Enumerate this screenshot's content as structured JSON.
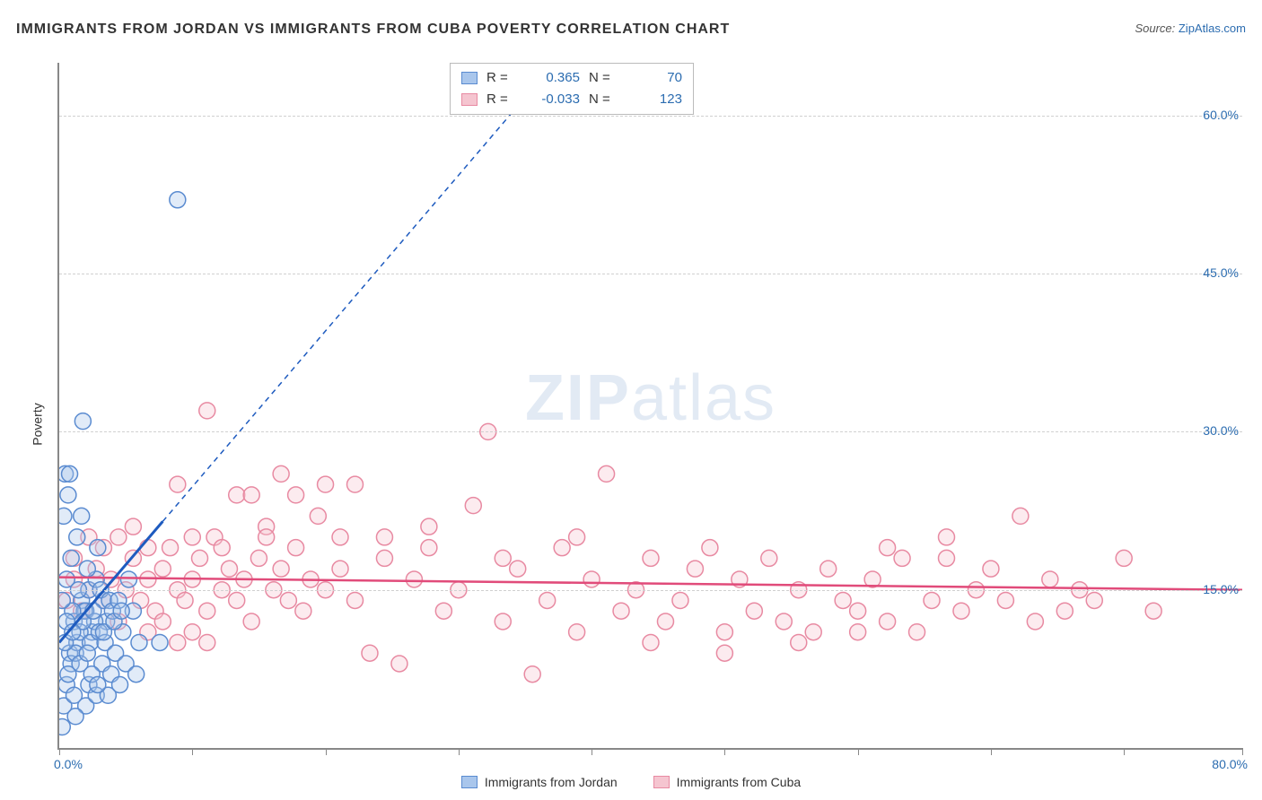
{
  "title": "IMMIGRANTS FROM JORDAN VS IMMIGRANTS FROM CUBA POVERTY CORRELATION CHART",
  "source_label": "Source: ",
  "source_value": "ZipAtlas.com",
  "ylabel": "Poverty",
  "watermark_a": "ZIP",
  "watermark_b": "atlas",
  "chart": {
    "type": "scatter",
    "background_color": "#ffffff",
    "grid_color": "#d0d0d0",
    "axis_color": "#888888",
    "xlim": [
      0,
      80
    ],
    "ylim": [
      0,
      65
    ],
    "xtick_labels": {
      "left": "0.0%",
      "right": "80.0%"
    },
    "xtick_marks": [
      0,
      9,
      18,
      27,
      36,
      45,
      54,
      63,
      72,
      80
    ],
    "yticks": [
      {
        "v": 15,
        "label": "15.0%"
      },
      {
        "v": 30,
        "label": "30.0%"
      },
      {
        "v": 45,
        "label": "45.0%"
      },
      {
        "v": 60,
        "label": "60.0%"
      }
    ],
    "marker_radius": 9,
    "marker_stroke_width": 1.5,
    "marker_fill_opacity": 0.35,
    "series": [
      {
        "name": "Immigrants from Jordan",
        "color_fill": "#a9c6ec",
        "color_stroke": "#5a8bd0",
        "R_label": "R =",
        "R": "0.365",
        "N_label": "N =",
        "N": "70",
        "trend": {
          "solid_to_x": 7,
          "slope_start": [
            0,
            10
          ],
          "slope_end": [
            33.5,
            65
          ],
          "color": "#1e5bbf",
          "dash": "6,5"
        },
        "points": [
          [
            0.2,
            2
          ],
          [
            0.5,
            6
          ],
          [
            0.7,
            9
          ],
          [
            1,
            12
          ],
          [
            1.2,
            10
          ],
          [
            1.5,
            14
          ],
          [
            0.8,
            8
          ],
          [
            1.8,
            13
          ],
          [
            2,
            15
          ],
          [
            2.2,
            11
          ],
          [
            2.5,
            16
          ],
          [
            3,
            14
          ],
          [
            3.2,
            12
          ],
          [
            0.3,
            4
          ],
          [
            0.6,
            7
          ],
          [
            1.1,
            9
          ],
          [
            1.4,
            11
          ],
          [
            1.7,
            13
          ],
          [
            2.1,
            10
          ],
          [
            2.4,
            12
          ],
          [
            2.8,
            15
          ],
          [
            3.4,
            14
          ],
          [
            0.4,
            10
          ],
          [
            0.9,
            13
          ],
          [
            1.3,
            15
          ],
          [
            1.6,
            12
          ],
          [
            2.3,
            13
          ],
          [
            2.7,
            11
          ],
          [
            3.1,
            10
          ],
          [
            3.6,
            13
          ],
          [
            4,
            14
          ],
          [
            4.3,
            11
          ],
          [
            4.7,
            16
          ],
          [
            5,
            13
          ],
          [
            5.4,
            10
          ],
          [
            0.5,
            16
          ],
          [
            0.8,
            18
          ],
          [
            1.2,
            20
          ],
          [
            1.9,
            17
          ],
          [
            2.6,
            19
          ],
          [
            0.3,
            22
          ],
          [
            0.6,
            24
          ],
          [
            1.5,
            22
          ],
          [
            0.4,
            26
          ],
          [
            0.7,
            26
          ],
          [
            3.8,
            9
          ],
          [
            4.5,
            8
          ],
          [
            5.2,
            7
          ],
          [
            1.0,
            5
          ],
          [
            2.0,
            6
          ],
          [
            2.9,
            8
          ],
          [
            3.5,
            7
          ],
          [
            1.8,
            4
          ],
          [
            2.5,
            5
          ],
          [
            1.6,
            31
          ],
          [
            8,
            52
          ],
          [
            6.8,
            10
          ],
          [
            1.1,
            3
          ],
          [
            3.3,
            5
          ],
          [
            4.1,
            6
          ],
          [
            0.2,
            14
          ],
          [
            0.5,
            12
          ],
          [
            0.9,
            11
          ],
          [
            1.4,
            8
          ],
          [
            1.9,
            9
          ],
          [
            2.2,
            7
          ],
          [
            2.6,
            6
          ],
          [
            3.0,
            11
          ],
          [
            3.7,
            12
          ],
          [
            4.2,
            13
          ]
        ]
      },
      {
        "name": "Immigrants from Cuba",
        "color_fill": "#f5c5d0",
        "color_stroke": "#e88aa2",
        "R_label": "R =",
        "R": "-0.033",
        "N_label": "N =",
        "N": "123",
        "trend": {
          "flat_y_start": 16.2,
          "flat_y_end": 15.0,
          "color": "#e14b7a"
        },
        "points": [
          [
            0.5,
            14
          ],
          [
            1,
            16
          ],
          [
            1.5,
            13
          ],
          [
            2,
            15
          ],
          [
            2.5,
            17
          ],
          [
            3,
            14
          ],
          [
            3.5,
            16
          ],
          [
            4,
            12
          ],
          [
            4.5,
            15
          ],
          [
            5,
            18
          ],
          [
            5.5,
            14
          ],
          [
            6,
            16
          ],
          [
            6.5,
            13
          ],
          [
            7,
            17
          ],
          [
            7.5,
            19
          ],
          [
            8,
            15
          ],
          [
            8.5,
            14
          ],
          [
            9,
            16
          ],
          [
            9.5,
            18
          ],
          [
            10,
            13
          ],
          [
            10.5,
            20
          ],
          [
            11,
            15
          ],
          [
            11.5,
            17
          ],
          [
            12,
            14
          ],
          [
            12.5,
            16
          ],
          [
            13,
            12
          ],
          [
            13.5,
            18
          ],
          [
            14,
            21
          ],
          [
            14.5,
            15
          ],
          [
            15,
            17
          ],
          [
            15.5,
            14
          ],
          [
            16,
            19
          ],
          [
            16.5,
            13
          ],
          [
            17,
            16
          ],
          [
            17.5,
            22
          ],
          [
            18,
            15
          ],
          [
            19,
            17
          ],
          [
            20,
            14
          ],
          [
            21,
            9
          ],
          [
            22,
            18
          ],
          [
            23,
            8
          ],
          [
            24,
            16
          ],
          [
            25,
            21
          ],
          [
            26,
            13
          ],
          [
            27,
            15
          ],
          [
            28,
            23
          ],
          [
            29,
            30
          ],
          [
            30,
            12
          ],
          [
            31,
            17
          ],
          [
            32,
            7
          ],
          [
            33,
            14
          ],
          [
            34,
            19
          ],
          [
            35,
            11
          ],
          [
            36,
            16
          ],
          [
            37,
            26
          ],
          [
            38,
            13
          ],
          [
            39,
            15
          ],
          [
            40,
            18
          ],
          [
            41,
            12
          ],
          [
            42,
            14
          ],
          [
            43,
            17
          ],
          [
            44,
            19
          ],
          [
            45,
            11
          ],
          [
            46,
            16
          ],
          [
            47,
            13
          ],
          [
            48,
            18
          ],
          [
            49,
            12
          ],
          [
            50,
            15
          ],
          [
            51,
            11
          ],
          [
            52,
            17
          ],
          [
            53,
            14
          ],
          [
            54,
            13
          ],
          [
            55,
            16
          ],
          [
            56,
            12
          ],
          [
            57,
            18
          ],
          [
            58,
            11
          ],
          [
            59,
            14
          ],
          [
            60,
            20
          ],
          [
            61,
            13
          ],
          [
            62,
            15
          ],
          [
            63,
            17
          ],
          [
            64,
            14
          ],
          [
            65,
            22
          ],
          [
            66,
            12
          ],
          [
            67,
            16
          ],
          [
            68,
            13
          ],
          [
            69,
            15
          ],
          [
            70,
            14
          ],
          [
            72,
            18
          ],
          [
            74,
            13
          ],
          [
            8,
            25
          ],
          [
            10,
            32
          ],
          [
            12,
            24
          ],
          [
            15,
            26
          ],
          [
            16,
            24
          ],
          [
            18,
            25
          ],
          [
            13,
            24
          ],
          [
            20,
            25
          ],
          [
            6,
            19
          ],
          [
            9,
            20
          ],
          [
            11,
            19
          ],
          [
            14,
            20
          ],
          [
            19,
            20
          ],
          [
            22,
            20
          ],
          [
            25,
            19
          ],
          [
            30,
            18
          ],
          [
            35,
            20
          ],
          [
            40,
            10
          ],
          [
            45,
            9
          ],
          [
            50,
            10
          ],
          [
            1,
            18
          ],
          [
            2,
            20
          ],
          [
            3,
            19
          ],
          [
            4,
            20
          ],
          [
            5,
            21
          ],
          [
            6,
            11
          ],
          [
            7,
            12
          ],
          [
            8,
            10
          ],
          [
            9,
            11
          ],
          [
            10,
            10
          ],
          [
            56,
            19
          ],
          [
            60,
            18
          ],
          [
            54,
            11
          ]
        ]
      }
    ]
  },
  "legend": {
    "items": [
      {
        "label": "Immigrants from Jordan",
        "fill": "#a9c6ec",
        "stroke": "#5a8bd0"
      },
      {
        "label": "Immigrants from Cuba",
        "fill": "#f5c5d0",
        "stroke": "#e88aa2"
      }
    ]
  }
}
